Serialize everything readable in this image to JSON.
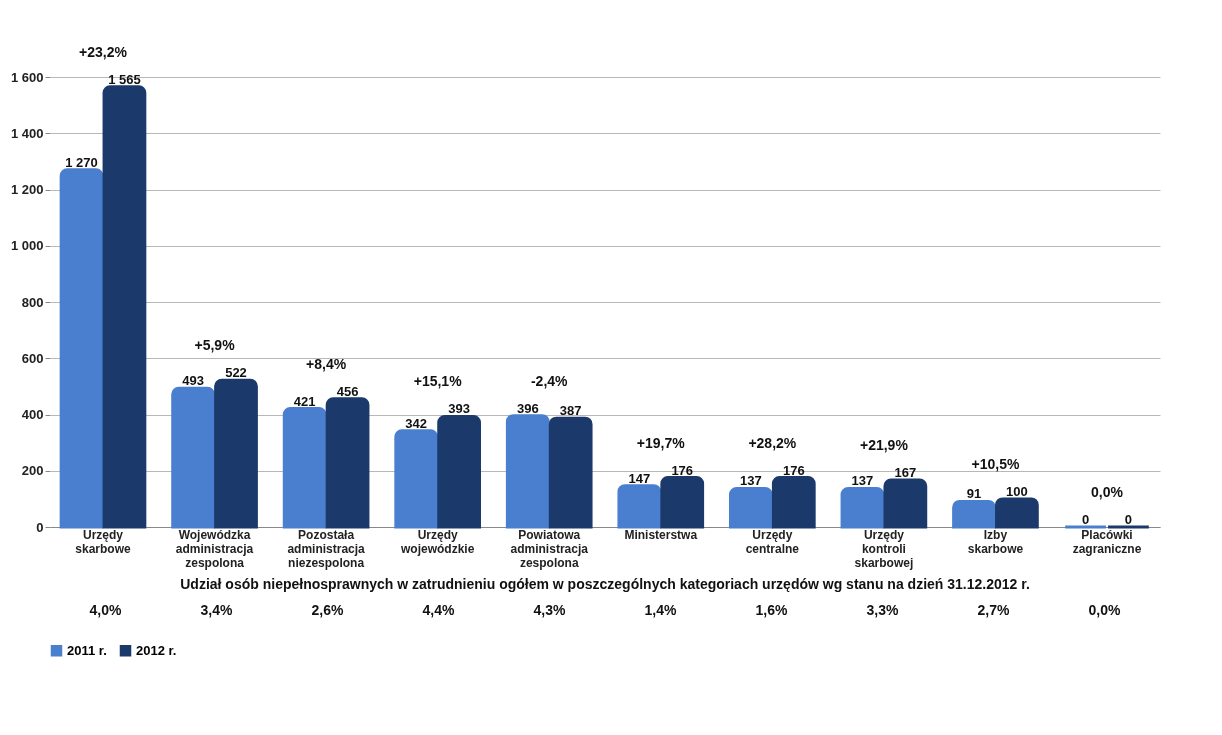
{
  "chart_data": {
    "type": "bar",
    "categories": [
      "Urzędy skarbowe",
      "Wojewódzka administracja zespolona",
      "Pozostała administracja niezespolona",
      "Urzędy wojewódzkie",
      "Powiatowa administracja zespolona",
      "Ministerstwa",
      "Urzędy centralne",
      "Urzędy kontroli skarbowej",
      "Izby skarbowe",
      "Placówki zagraniczne"
    ],
    "series": [
      {
        "name": "2011 r.",
        "color": "#4a7fcf",
        "values": [
          1270,
          493,
          421,
          342,
          396,
          147,
          137,
          137,
          91,
          0
        ],
        "value_labels": [
          "1 270",
          "493",
          "421",
          "342",
          "396",
          "147",
          "137",
          "137",
          "91",
          "0"
        ]
      },
      {
        "name": "2012 r.",
        "color": "#1b3a6b",
        "values": [
          1565,
          522,
          456,
          393,
          387,
          176,
          176,
          167,
          100,
          0
        ],
        "value_labels": [
          "1 565",
          "522",
          "456",
          "393",
          "387",
          "176",
          "176",
          "167",
          "100",
          "0"
        ]
      }
    ],
    "ylim": [
      0,
      1600
    ],
    "yticks": [
      0,
      200,
      400,
      600,
      800,
      {
        "value": 1000,
        "label": "1 000"
      },
      {
        "value": 1200,
        "label": "1 200"
      },
      {
        "value": 1400,
        "label": "1 400"
      },
      {
        "value": 1600,
        "label": "1 600"
      }
    ],
    "grid": "y",
    "legend": "bottom",
    "annotations": [
      "+23,2%",
      "+5,9%",
      "+8,4%",
      "+15,1%",
      "-2,4%",
      "+19,7%",
      "+28,2%",
      "+21,9%",
      "+10,5%",
      "0,0%",
      "Udział osób niepełnosprawnych w zatrudnieniu ogółem w poszczególnych kategoriach urzędów wg stanu na dzień 31.12.2012 r.",
      "4,0%",
      "3,4%",
      "2,6%",
      "4,4%",
      "4,3%",
      "1,4%",
      "1,6%",
      "3,3%",
      "2,7%",
      "0,0%"
    ]
  }
}
